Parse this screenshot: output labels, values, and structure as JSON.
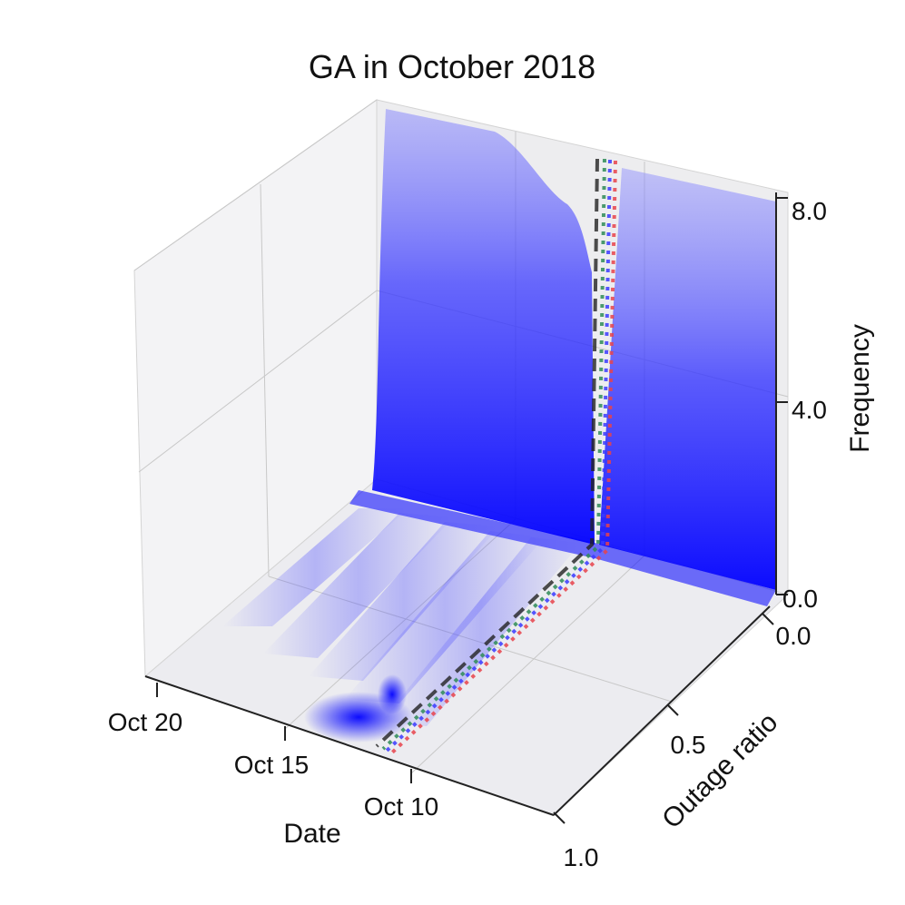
{
  "chart_data": {
    "type": "3d-surface",
    "title": "GA in October 2018",
    "xlabel": "Date",
    "ylabel": "Outage ratio",
    "zlabel": "Frequency",
    "x_ticks": [
      "Oct 20",
      "Oct 15",
      "Oct 10"
    ],
    "y_ticks": [
      "0.0",
      "0.5",
      "1.0"
    ],
    "z_ticks": [
      "0.0",
      "4.0",
      "8.0"
    ],
    "y_range": [
      0.0,
      1.0
    ],
    "z_range": [
      0.0,
      8.0
    ],
    "surface_color": "#0000ff",
    "outage_ratio_peak": 0.0,
    "reference_lines": [
      {
        "style": "dashed",
        "color": "#222222"
      },
      {
        "style": "dotted",
        "color": "#2e8b57"
      },
      {
        "style": "dotted",
        "color": "#3a3aff"
      },
      {
        "style": "dotted",
        "color": "#e8434b"
      }
    ]
  }
}
